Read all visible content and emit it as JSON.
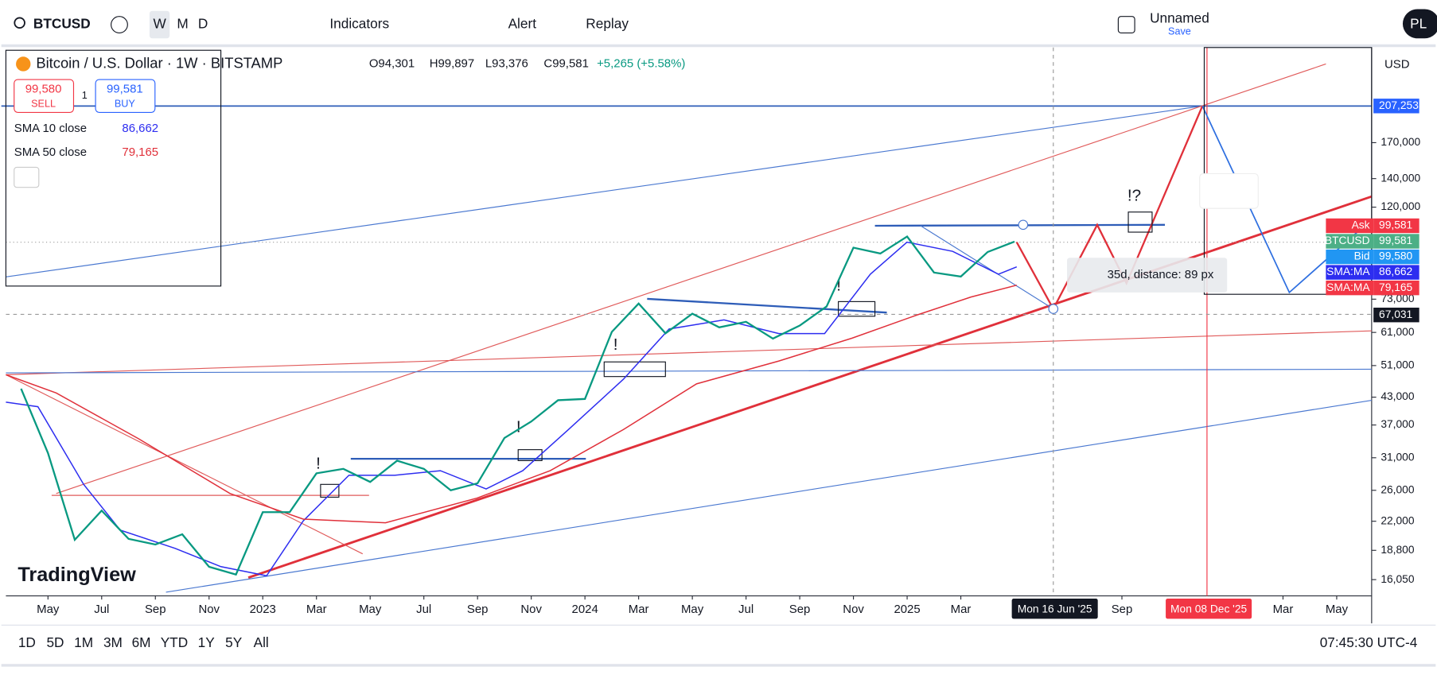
{
  "toolbar": {
    "symbol": "BTCUSD",
    "intervals": [
      "W",
      "M",
      "D"
    ],
    "indicators": "Indicators",
    "alert": "Alert",
    "replay": "Replay",
    "layout_name": "Unnamed",
    "save": "Save",
    "user": "PL"
  },
  "legend": {
    "title": "Bitcoin / U.S. Dollar · 1W · BITSTAMP",
    "ohlc": [
      "O94,301",
      "H99,897",
      "L93,376",
      "C99,581",
      "+5,265 (+5.58%)"
    ],
    "sell": {
      "price": "99,580",
      "label": "SELL"
    },
    "spread": "1",
    "buy": {
      "price": "99,581",
      "label": "BUY"
    },
    "indicators": [
      {
        "name": "SMA 10 close",
        "value": "86,662"
      },
      {
        "name": "SMA 50 close",
        "value": "79,165"
      }
    ]
  },
  "annotations": {
    "measure": "35d, distance: 89 px",
    "marks": [
      "!",
      "!",
      "!",
      "!",
      "!?"
    ],
    "logo": "TradingView"
  },
  "currency": "USD",
  "chart_data": {
    "type": "line",
    "name": "BTCUSD",
    "x": [
      "2022-04",
      "2022-05",
      "2022-06",
      "2022-07",
      "2022-08",
      "2022-09",
      "2022-10",
      "2022-11",
      "2022-12",
      "2023-01",
      "2023-02",
      "2023-03",
      "2023-04",
      "2023-05",
      "2023-06",
      "2023-07",
      "2023-08",
      "2023-09",
      "2023-10",
      "2023-11",
      "2023-12",
      "2024-01",
      "2024-02",
      "2024-03",
      "2024-04",
      "2024-05",
      "2024-06",
      "2024-07",
      "2024-08",
      "2024-09",
      "2024-10",
      "2024-11",
      "2024-12",
      "2025-01",
      "2025-02",
      "2025-03",
      "2025-04",
      "2025-05"
    ],
    "series": [
      {
        "name": "BTCUSD",
        "color": "#089981",
        "values": [
          45000,
          31800,
          19900,
          23300,
          20000,
          19400,
          20500,
          17200,
          16500,
          23100,
          23100,
          28500,
          29200,
          27200,
          30500,
          29200,
          26000,
          27000,
          34500,
          37700,
          42300,
          42600,
          61200,
          71300,
          60700,
          67500,
          62700,
          64600,
          59000,
          63300,
          70200,
          96400,
          93400,
          102400,
          84300,
          82500,
          94200,
          99581
        ]
      }
    ],
    "log_scale": true,
    "ylim": [
      14700,
      280000
    ],
    "yticks": [
      {
        "value": 16050,
        "label": "16,050"
      },
      {
        "value": 18800,
        "label": "18,800"
      },
      {
        "value": 22000,
        "label": "22,000"
      },
      {
        "value": 26000,
        "label": "26,000"
      },
      {
        "value": 31000,
        "label": "31,000"
      },
      {
        "value": 37000,
        "label": "37,000"
      },
      {
        "value": 43000,
        "label": "43,000"
      },
      {
        "value": 51000,
        "label": "51,000"
      },
      {
        "value": 61000,
        "label": "61,000"
      },
      {
        "value": 73000,
        "label": "73,000"
      },
      {
        "value": 120000,
        "label": "120,000"
      },
      {
        "value": 140000,
        "label": "140,000"
      },
      {
        "value": 170000,
        "label": "170,000"
      }
    ],
    "xticks": [
      {
        "value": "2022-05",
        "label": "May"
      },
      {
        "value": "2022-07",
        "label": "Jul"
      },
      {
        "value": "2022-09",
        "label": "Sep"
      },
      {
        "value": "2022-11",
        "label": "Nov"
      },
      {
        "value": "2023-01",
        "label": "2023"
      },
      {
        "value": "2023-03",
        "label": "Mar"
      },
      {
        "value": "2023-05",
        "label": "May"
      },
      {
        "value": "2023-07",
        "label": "Jul"
      },
      {
        "value": "2023-09",
        "label": "Sep"
      },
      {
        "value": "2023-11",
        "label": "Nov"
      },
      {
        "value": "2024-01",
        "label": "2024"
      },
      {
        "value": "2024-03",
        "label": "Mar"
      },
      {
        "value": "2024-05",
        "label": "May"
      },
      {
        "value": "2024-07",
        "label": "Jul"
      },
      {
        "value": "2024-09",
        "label": "Sep"
      },
      {
        "value": "2024-11",
        "label": "Nov"
      },
      {
        "value": "2025-01",
        "label": "2025"
      },
      {
        "value": "2025-03",
        "label": "Mar"
      },
      {
        "value": "2025-09",
        "label": "Sep"
      },
      {
        "value": "2026-03",
        "label": "Mar"
      },
      {
        "value": "2026-05",
        "label": "May"
      }
    ],
    "cursor_dates": [
      {
        "value": "2025-06-16",
        "label": "Mon 16 Jun '25",
        "color": "#131722"
      },
      {
        "value": "2025-12-08",
        "label": "Mon 08 Dec '25",
        "color": "#f23645"
      }
    ],
    "price_tags": [
      {
        "price": {
          "value": 207253,
          "label": "207,253"
        },
        "color": "#2962ff"
      },
      {
        "name": "Ask",
        "price": {
          "value": 99581,
          "label": "99,581"
        },
        "color": "#f23645"
      },
      {
        "name": "BTCUSD",
        "price": {
          "value": 99581,
          "label": "99,581"
        },
        "color": "#4caf86"
      },
      {
        "name": "Bid",
        "price": {
          "value": 99580,
          "label": "99,580"
        },
        "color": "#2196f3"
      },
      {
        "name": "SMA:MA",
        "price": {
          "value": 86662,
          "label": "86,662"
        },
        "color": "#2d2df0"
      },
      {
        "name": "SMA:MA",
        "price": {
          "value": 79165,
          "label": "79,165"
        },
        "color": "#f23645"
      },
      {
        "price": {
          "value": 67031,
          "label": "67,031"
        },
        "color": "#131722"
      }
    ]
  },
  "bottom_bar": {
    "ranges": [
      "1D",
      "5D",
      "1M",
      "3M",
      "6M",
      "YTD",
      "1Y",
      "5Y",
      "All"
    ],
    "clock": "07:45:30 UTC-4"
  }
}
